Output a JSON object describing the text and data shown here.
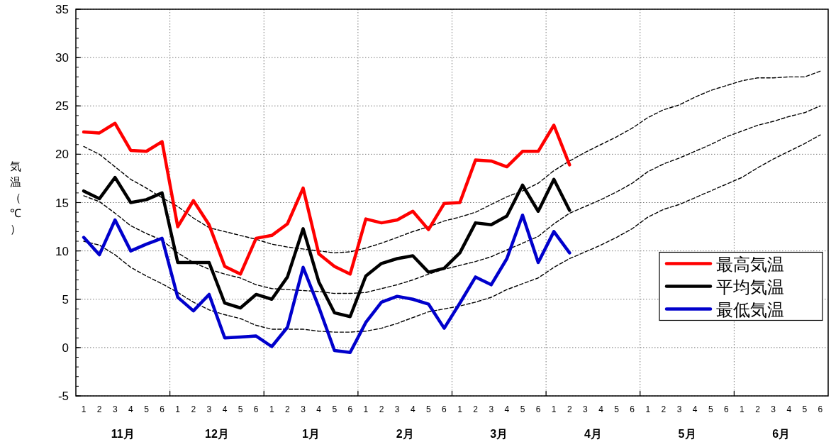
{
  "chart_data": {
    "type": "line",
    "categories": [
      "1",
      "2",
      "3",
      "4",
      "5",
      "6",
      "1",
      "2",
      "3",
      "4",
      "5",
      "6",
      "1",
      "2",
      "3",
      "4",
      "5",
      "6",
      "1",
      "2",
      "3",
      "4",
      "5",
      "6",
      "1",
      "2",
      "3",
      "4",
      "5",
      "6",
      "1",
      "2",
      "3",
      "4",
      "5",
      "6",
      "1",
      "2",
      "3",
      "4",
      "5",
      "6",
      "1",
      "2",
      "3",
      "4",
      "5",
      "6"
    ],
    "series": [
      {
        "color": "#000000",
        "line_style": "dashed",
        "values": [
          20.8,
          20.0,
          18.7,
          17.4,
          16.5,
          15.5,
          14.6,
          13.4,
          12.4,
          12.0,
          11.6,
          11.2,
          10.7,
          10.4,
          10.2,
          10.0,
          9.8,
          9.9,
          10.3,
          10.8,
          11.4,
          12.0,
          12.5,
          13.1,
          13.5,
          14.0,
          14.8,
          15.6,
          16.2,
          17.0,
          18.3,
          19.3,
          20.2,
          21.0,
          21.8,
          22.7,
          23.8,
          24.6,
          25.1,
          25.9,
          26.6,
          27.1,
          27.6,
          27.9,
          27.9,
          28.0,
          28.0,
          28.6
        ]
      },
      {
        "color": "#000000",
        "line_style": "dashed",
        "values": [
          15.7,
          15.1,
          13.9,
          12.6,
          11.8,
          11.1,
          9.8,
          8.8,
          8.1,
          7.6,
          7.2,
          6.5,
          6.1,
          6.0,
          5.9,
          5.8,
          5.6,
          5.6,
          5.7,
          6.1,
          6.5,
          7.0,
          7.6,
          8.1,
          8.5,
          8.9,
          9.4,
          10.1,
          10.8,
          11.5,
          12.8,
          13.9,
          14.6,
          15.3,
          16.1,
          17.0,
          18.2,
          19.0,
          19.6,
          20.3,
          21.0,
          21.8,
          22.4,
          23.0,
          23.4,
          23.9,
          24.3,
          25.0
        ]
      },
      {
        "color": "#000000",
        "line_style": "dashed",
        "values": [
          11.0,
          10.6,
          9.6,
          8.3,
          7.4,
          6.6,
          5.7,
          4.7,
          3.9,
          3.4,
          3.0,
          2.3,
          1.9,
          1.9,
          1.9,
          1.7,
          1.6,
          1.6,
          1.7,
          2.0,
          2.5,
          3.1,
          3.7,
          4.0,
          4.3,
          4.7,
          5.2,
          6.0,
          6.6,
          7.2,
          8.3,
          9.2,
          9.9,
          10.6,
          11.4,
          12.3,
          13.5,
          14.3,
          14.8,
          15.5,
          16.2,
          16.9,
          17.6,
          18.6,
          19.5,
          20.3,
          21.1,
          22.0
        ]
      },
      {
        "name": "最高気温",
        "color": "#ff0000",
        "line_style": "solid",
        "values": [
          22.3,
          22.2,
          23.2,
          20.4,
          20.3,
          21.3,
          12.5,
          15.2,
          12.7,
          8.4,
          7.6,
          11.3,
          11.6,
          12.8,
          16.5,
          9.7,
          8.4,
          7.6,
          13.3,
          12.9,
          13.2,
          14.1,
          12.2,
          14.9,
          15.0,
          19.4,
          19.3,
          18.7,
          20.3,
          20.3,
          23.0,
          18.9,
          null,
          null,
          null,
          null,
          null,
          null,
          null,
          null,
          null,
          null,
          null,
          null,
          null,
          null,
          null,
          null
        ]
      },
      {
        "name": "平均気温",
        "color": "#000000",
        "line_style": "solid",
        "values": [
          16.2,
          15.4,
          17.6,
          15.0,
          15.3,
          16.0,
          8.8,
          8.8,
          8.8,
          4.6,
          4.1,
          5.5,
          5.0,
          7.3,
          12.3,
          6.8,
          3.6,
          3.2,
          7.4,
          8.7,
          9.2,
          9.5,
          7.8,
          8.2,
          9.8,
          12.9,
          12.7,
          13.6,
          16.8,
          14.1,
          17.4,
          14.2,
          null,
          null,
          null,
          null,
          null,
          null,
          null,
          null,
          null,
          null,
          null,
          null,
          null,
          null,
          null,
          null
        ]
      },
      {
        "name": "最低気温",
        "color": "#0000cc",
        "line_style": "solid",
        "values": [
          11.4,
          9.6,
          13.2,
          10.0,
          10.7,
          11.3,
          5.2,
          3.8,
          5.5,
          1.0,
          1.1,
          1.2,
          0.1,
          2.1,
          8.3,
          4.2,
          -0.3,
          -0.5,
          2.6,
          4.7,
          5.3,
          5.0,
          4.5,
          2.0,
          4.6,
          7.3,
          6.5,
          9.2,
          13.7,
          8.8,
          12.0,
          9.8,
          null,
          null,
          null,
          null,
          null,
          null,
          null,
          null,
          null,
          null,
          null,
          null,
          null,
          null,
          null,
          null
        ]
      }
    ],
    "annotations": [
      "11月",
      "12月",
      "1月",
      "2月",
      "3月",
      "4月",
      "5月",
      "6月"
    ],
    "ylabel": "気温（℃）",
    "ylim": [
      -5,
      35
    ],
    "yticks": [
      -5,
      0,
      5,
      10,
      15,
      20,
      25,
      30,
      35
    ],
    "grid": true,
    "legend": "right",
    "marker": "none"
  }
}
